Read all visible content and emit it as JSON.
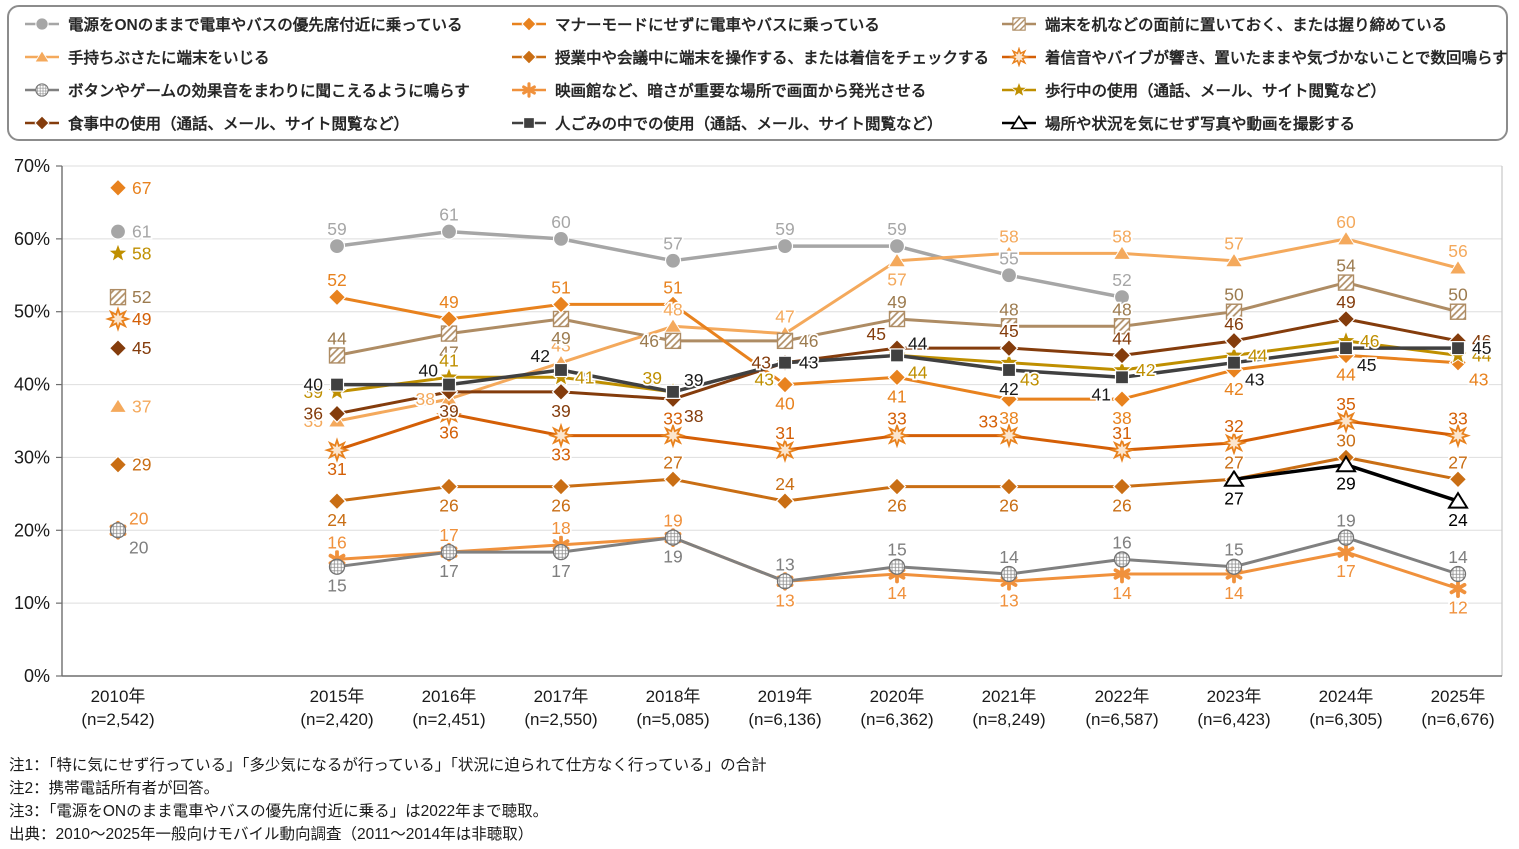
{
  "chart_data": {
    "type": "line",
    "ylim": [
      0,
      70
    ],
    "grid": true,
    "legend_position": "top",
    "y_ticks": [
      "0%",
      "10%",
      "20%",
      "30%",
      "40%",
      "50%",
      "60%",
      "70%"
    ],
    "x_labels": [
      {
        "year": "2010年",
        "n": "(n=2,542)"
      },
      {
        "year": "2015年",
        "n": "(n=2,420)"
      },
      {
        "year": "2016年",
        "n": "(n=2,451)"
      },
      {
        "year": "2017年",
        "n": "(n=2,550)"
      },
      {
        "year": "2018年",
        "n": "(n=5,085)"
      },
      {
        "year": "2019年",
        "n": "(n=6,136)"
      },
      {
        "year": "2020年",
        "n": "(n=6,362)"
      },
      {
        "year": "2021年",
        "n": "(n=8,249)"
      },
      {
        "year": "2022年",
        "n": "(n=6,587)"
      },
      {
        "year": "2023年",
        "n": "(n=6,423)"
      },
      {
        "year": "2024年",
        "n": "(n=6,305)"
      },
      {
        "year": "2025年",
        "n": "(n=6,676)"
      }
    ],
    "series": [
      {
        "id": "power_on",
        "name": "電源をONのままで電車やバスの優先席付近に乗っている",
        "marker": "circle",
        "color": "#A6A6A6",
        "label_color": "#A6A6A6",
        "values": [
          61,
          59,
          61,
          60,
          57,
          59,
          59,
          55,
          52,
          null,
          null,
          null
        ]
      },
      {
        "id": "manner_mode",
        "name": "マナーモードにせずに電車やバスに乗っている",
        "marker": "diamond",
        "color": "#E8821E",
        "label_color": "#E8821E",
        "values": [
          67,
          52,
          49,
          51,
          51,
          40,
          41,
          38,
          38,
          42,
          44,
          43
        ]
      },
      {
        "id": "desk_front",
        "name": "端末を机などの面前に置いておく、または握り締めている",
        "marker": "hatched-square",
        "color": "#AE8C64",
        "label_color": "#9C7B4F",
        "values": [
          52,
          44,
          47,
          49,
          46,
          46,
          49,
          48,
          48,
          50,
          54,
          50
        ]
      },
      {
        "id": "idle_fiddle",
        "name": "手持ちぶさたに端末をいじる",
        "marker": "triangle",
        "color": "#F4A95C",
        "label_color": "#F4A95C",
        "values": [
          37,
          35,
          38,
          43,
          48,
          47,
          57,
          58,
          58,
          57,
          60,
          56
        ]
      },
      {
        "id": "class_meeting",
        "name": "授業中や会議中に端末を操作する、または着信をチェックする",
        "marker": "diamond",
        "color": "#C96E14",
        "label_color": "#C96E14",
        "values": [
          29,
          24,
          26,
          26,
          27,
          24,
          26,
          26,
          26,
          27,
          30,
          27
        ]
      },
      {
        "id": "ring_unattended",
        "name": "着信音やバイブが響き、置いたままや気づかないことで数回鳴らす",
        "marker": "sunburst",
        "color": "#D45F06",
        "label_color": "#D45F06",
        "values": [
          49,
          31,
          36,
          33,
          33,
          31,
          33,
          33,
          31,
          32,
          35,
          33
        ]
      },
      {
        "id": "button_sound",
        "name": "ボタンやゲームの効果音をまわりに聞こえるように鳴らす",
        "marker": "crosshatch-circle",
        "color": "#808080",
        "label_color": "#7F7F7F",
        "values": [
          20,
          15,
          17,
          17,
          19,
          13,
          15,
          14,
          16,
          15,
          19,
          14
        ]
      },
      {
        "id": "cinema_glow",
        "name": "映画館など、暗さが重要な場所で画面から発光させる",
        "marker": "asterisk",
        "color": "#F0913C",
        "label_color": "#F0913C",
        "values": [
          20,
          16,
          17,
          18,
          19,
          13,
          14,
          13,
          14,
          14,
          17,
          12
        ]
      },
      {
        "id": "walking_use",
        "name": "歩行中の使用（通話、メール、サイト閲覧など）",
        "marker": "star5",
        "color": "#BF8F00",
        "label_color": "#BF8F00",
        "values": [
          58,
          39,
          41,
          41,
          39,
          43,
          44,
          43,
          42,
          44,
          46,
          44
        ]
      },
      {
        "id": "eating_use",
        "name": "食事中の使用（通話、メール、サイト閲覧など）",
        "marker": "diamond",
        "color": "#843C0C",
        "label_color": "#843C0C",
        "values": [
          45,
          36,
          39,
          39,
          38,
          43,
          45,
          45,
          44,
          46,
          49,
          46
        ]
      },
      {
        "id": "crowd_use",
        "name": "人ごみの中での使用（通話、メール、サイト閲覧など）",
        "marker": "square",
        "color": "#404040",
        "label_color": "#1A1A1A",
        "values": [
          null,
          40,
          40,
          42,
          39,
          43,
          44,
          42,
          41,
          43,
          45,
          45
        ]
      },
      {
        "id": "photo_anywhere",
        "name": "場所や状況を気にせず写真や動画を撮影する",
        "marker": "triangle-open",
        "color": "#000000",
        "label_color": "#000000",
        "values": [
          null,
          null,
          null,
          null,
          null,
          null,
          null,
          null,
          null,
          27,
          29,
          24
        ]
      }
    ]
  },
  "notes": [
    "注1：「特に気にせず行っている」「多少気になるが行っている」「状況に迫られて仕方なく行っている」の合計",
    "注2：携帯電話所有者が回答。",
    "注3：「電源をONのまま電車やバスの優先席付近に乗る」は2022年まで聴取。",
    "出典：2010～2025年一般向けモバイル動向調査（2011～2014年は非聴取）"
  ]
}
